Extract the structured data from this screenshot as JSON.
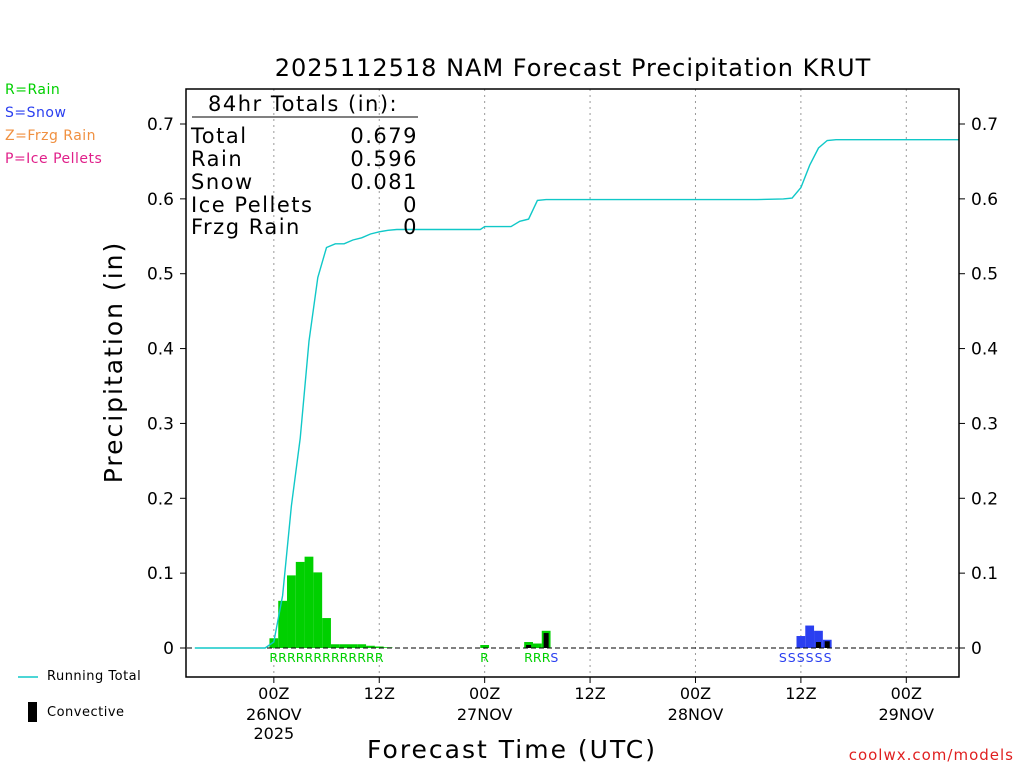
{
  "chart_data": {
    "type": "bar",
    "title": "2025112518 NAM Forecast Precipitation KRUT",
    "xlabel": "Forecast Time (UTC)",
    "ylabel": "Precipitation (in)",
    "ylim": [
      0,
      0.75
    ],
    "y_ticks": [
      0,
      0.1,
      0.2,
      0.3,
      0.4,
      0.5,
      0.6,
      0.7
    ],
    "y_tick_labels": [
      "0",
      "0.1",
      "0.2",
      "0.3",
      "0.4",
      "0.5",
      "0.6",
      "0.7"
    ],
    "x_range_hours": [
      -4,
      84
    ],
    "x_ticks": [
      {
        "hour": 6,
        "label": "00Z",
        "date": "26NOV",
        "year": "2025"
      },
      {
        "hour": 18,
        "label": "12Z",
        "date": "",
        "year": ""
      },
      {
        "hour": 30,
        "label": "00Z",
        "date": "27NOV",
        "year": ""
      },
      {
        "hour": 42,
        "label": "12Z",
        "date": "",
        "year": ""
      },
      {
        "hour": 54,
        "label": "00Z",
        "date": "28NOV",
        "year": ""
      },
      {
        "hour": 66,
        "label": "12Z",
        "date": "",
        "year": ""
      },
      {
        "hour": 78,
        "label": "00Z",
        "date": "29NOV",
        "year": ""
      }
    ],
    "grid": "vertical dotted",
    "series": [
      {
        "name": "Hourly Precipitation",
        "hours": [
          6,
          7,
          8,
          9,
          10,
          11,
          12,
          13,
          14,
          15,
          16,
          17,
          18,
          19,
          30,
          35,
          36,
          37,
          66,
          67,
          68,
          69
        ],
        "values": [
          0.013,
          0.063,
          0.097,
          0.115,
          0.122,
          0.101,
          0.04,
          0.005,
          0.005,
          0.005,
          0.005,
          0.003,
          0.002,
          0.001,
          0.004,
          0.008,
          0.006,
          0.023,
          0.016,
          0.03,
          0.023,
          0.011
        ],
        "types": [
          "R",
          "R",
          "R",
          "R",
          "R",
          "R",
          "R",
          "R",
          "R",
          "R",
          "R",
          "R",
          "R",
          "R",
          "R",
          "R",
          "R",
          "R",
          "S",
          "S",
          "S",
          "S"
        ]
      },
      {
        "name": "Convective",
        "hours": [
          35,
          37,
          68,
          69
        ],
        "values": [
          0.004,
          0.02,
          0.008,
          0.009
        ]
      },
      {
        "name": "Running Total",
        "hours": [
          -3,
          5,
          6,
          7,
          8,
          9,
          10,
          11,
          12,
          13,
          14,
          15,
          16,
          17,
          18,
          19,
          20,
          22,
          24,
          26,
          28,
          29.5,
          30,
          31,
          33,
          34,
          35,
          36,
          37,
          38,
          40,
          46,
          52,
          58,
          61,
          64,
          65,
          66,
          67,
          68,
          69,
          70,
          74,
          84
        ],
        "values": [
          0,
          0,
          0.008,
          0.07,
          0.19,
          0.28,
          0.41,
          0.495,
          0.535,
          0.54,
          0.54,
          0.545,
          0.548,
          0.553,
          0.556,
          0.558,
          0.559,
          0.559,
          0.559,
          0.559,
          0.559,
          0.559,
          0.563,
          0.563,
          0.563,
          0.57,
          0.573,
          0.598,
          0.599,
          0.599,
          0.599,
          0.599,
          0.599,
          0.599,
          0.599,
          0.6,
          0.601,
          0.615,
          0.645,
          0.668,
          0.678,
          0.679,
          0.679,
          0.679
        ]
      }
    ],
    "precip_type_labels": {
      "rain_run1": "RRRRRRRR",
      "rain_run2": "RRRRR",
      "rain_run3": "R",
      "rain_run4": "RRR",
      "snow_run1": "S",
      "snow_run2": "SSSSSS"
    },
    "totals": {
      "heading": "84hr Totals (in):",
      "rows": [
        {
          "label": "Total",
          "value": "0.679"
        },
        {
          "label": "Rain",
          "value": "0.596"
        },
        {
          "label": "Snow",
          "value": "0.081"
        },
        {
          "label": "Ice Pellets",
          "value": "0"
        },
        {
          "label": "Frzg Rain",
          "value": "0"
        }
      ]
    },
    "colors": {
      "rain": "#00d000",
      "snow": "#2a3ff0",
      "frzg_rain": "#f09040",
      "ice_pellets": "#e0208a",
      "running_total": "#10c8c8",
      "convective": "#000000",
      "grid": "#999999",
      "credit": "#e02020"
    }
  },
  "type_legend": [
    {
      "text": "R=Rain",
      "color": "#00d000"
    },
    {
      "text": "S=Snow",
      "color": "#2a3ff0"
    },
    {
      "text": "Z=Frzg Rain",
      "color": "#f09040"
    },
    {
      "text": "P=Ice Pellets",
      "color": "#e0208a"
    }
  ],
  "footer_legend": {
    "running_total": "Running Total",
    "convective": "Convective"
  },
  "credit": "coolwx.com/models"
}
